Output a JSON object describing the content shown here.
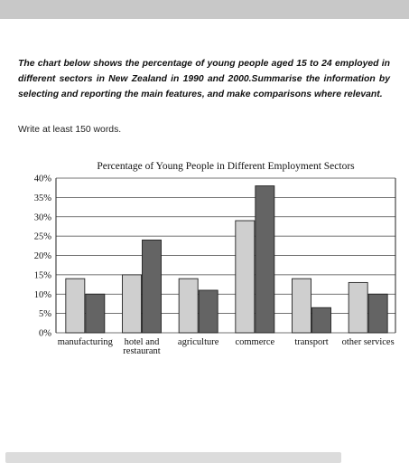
{
  "task": {
    "prompt": "The chart below shows the percentage of young people aged 15 to 24 employed in different sectors in New Zealand in 1990 and 2000.Summarise the information by selecting and reporting the main features, and make comparisons where relevant.",
    "instruction": "Write at least 150 words."
  },
  "chart_data": {
    "type": "bar",
    "title": "Percentage of  Young People in Different Employment Sectors",
    "categories": [
      [
        "manufacturing"
      ],
      [
        "hotel and",
        "restaurant"
      ],
      [
        "agriculture"
      ],
      [
        "commerce"
      ],
      [
        "transport"
      ],
      [
        "other services"
      ]
    ],
    "series": [
      {
        "color": "#cfcfcf",
        "values": [
          14,
          15,
          14,
          29,
          14,
          13
        ]
      },
      {
        "color": "#646464",
        "values": [
          10,
          24,
          11,
          38,
          6.5,
          10
        ]
      }
    ],
    "yticks": [
      "0%",
      "5%",
      "10%",
      "15%",
      "20%",
      "25%",
      "30%",
      "35%",
      "40%"
    ],
    "ylim": [
      0,
      40
    ],
    "grid": true
  }
}
